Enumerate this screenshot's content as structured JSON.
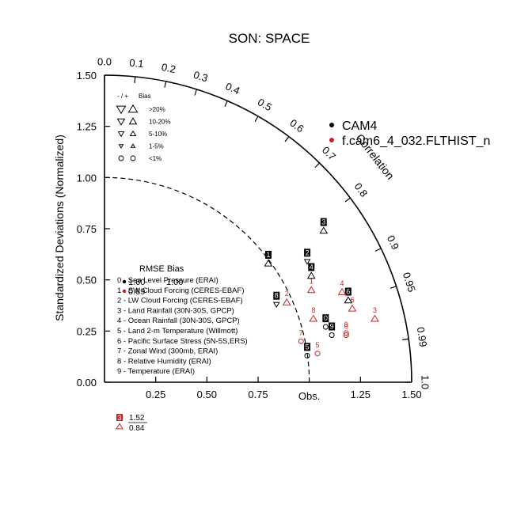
{
  "chart_data": {
    "type": "taylor",
    "title": "SON: SPACE",
    "ylabel": "Standardized Deviations (Normalized)",
    "arc_label": "Correlation",
    "obs_label": "Obs.",
    "radius_max": 1.5,
    "std_ticks_y": [
      "0.00",
      "0.25",
      "0.50",
      "0.75",
      "1.00",
      "1.25",
      "1.50"
    ],
    "std_ticks_x": [
      "0.25",
      "0.50",
      "0.75",
      "1.25",
      "1.50"
    ],
    "corr_ticks": [
      {
        "value": 0.0,
        "label": "0.0"
      },
      {
        "value": 0.1,
        "label": "0.1"
      },
      {
        "value": 0.2,
        "label": "0.2"
      },
      {
        "value": 0.3,
        "label": "0.3"
      },
      {
        "value": 0.4,
        "label": "0.4"
      },
      {
        "value": 0.5,
        "label": "0.5"
      },
      {
        "value": 0.6,
        "label": "0.6"
      },
      {
        "value": 0.7,
        "label": "0.7"
      },
      {
        "value": 0.8,
        "label": "0.8"
      },
      {
        "value": 0.9,
        "label": "0.9"
      },
      {
        "value": 0.95,
        "label": "0.95"
      },
      {
        "value": 0.99,
        "label": "0.99"
      },
      {
        "value": 1.0,
        "label": "1.0"
      }
    ],
    "reference_arc": 1.0,
    "series": [
      {
        "name": "CAM4",
        "color": "#000000",
        "points": [
          {
            "id": "0",
            "x": 1.08,
            "y": 0.27,
            "marker": "circle"
          },
          {
            "id": "1",
            "x": 0.8,
            "y": 0.58,
            "marker": "up"
          },
          {
            "id": "2",
            "x": 0.99,
            "y": 0.59,
            "marker": "down"
          },
          {
            "id": "3",
            "x": 1.07,
            "y": 0.74,
            "marker": "up"
          },
          {
            "id": "4",
            "x": 1.01,
            "y": 0.52,
            "marker": "up"
          },
          {
            "id": "5",
            "x": 0.99,
            "y": 0.13,
            "marker": "circle"
          },
          {
            "id": "6",
            "x": 1.19,
            "y": 0.4,
            "marker": "up"
          },
          {
            "id": "8",
            "x": 0.84,
            "y": 0.38,
            "marker": "down"
          },
          {
            "id": "9",
            "x": 1.11,
            "y": 0.23,
            "marker": "circle"
          }
        ]
      },
      {
        "name": "f.cam6_4_032.FLTHIST_n",
        "color": "#cc2222",
        "points": [
          {
            "id": "0",
            "x": 1.18,
            "y": 0.23,
            "marker": "circle"
          },
          {
            "id": "1",
            "x": 1.01,
            "y": 0.45,
            "marker": "up"
          },
          {
            "id": "2",
            "x": 0.89,
            "y": 0.39,
            "marker": "up"
          },
          {
            "id": "3",
            "x": 1.32,
            "y": 0.31,
            "marker": "up"
          },
          {
            "id": "4",
            "x": 1.16,
            "y": 0.44,
            "marker": "up"
          },
          {
            "id": "5",
            "x": 1.04,
            "y": 0.14,
            "marker": "circle"
          },
          {
            "id": "6",
            "x": 1.21,
            "y": 0.36,
            "marker": "up"
          },
          {
            "id": "7",
            "x": 0.96,
            "y": 0.2,
            "marker": "circle"
          },
          {
            "id": "8",
            "x": 1.02,
            "y": 0.31,
            "marker": "up"
          },
          {
            "id": "9",
            "x": 1.18,
            "y": 0.24,
            "marker": "circle"
          }
        ]
      }
    ],
    "case_legend": [
      {
        "label": "CAM4",
        "color": "#000000"
      },
      {
        "label": "f.cam6_4_032.FLTHIST_n",
        "color": "#cc2222"
      }
    ],
    "bias_legend": {
      "header_left": "- / +",
      "header_right": "Bias",
      "rows": [
        {
          "label": ">20%",
          "size": 5.5,
          "marker": "tri"
        },
        {
          "label": "10-20%",
          "size": 4.5,
          "marker": "tri"
        },
        {
          "label": "5-10%",
          "size": 3.5,
          "marker": "tri"
        },
        {
          "label": "1-5%",
          "size": 2.5,
          "marker": "tri"
        },
        {
          "label": "<1%",
          "size": 3.0,
          "marker": "circle"
        }
      ]
    },
    "variable_legend": {
      "header": "RMSE  Bias",
      "overlay_left": "1.60",
      "overlay_right": "1.00",
      "overlay_lower": "0.89",
      "items": [
        "0 - Sea Level Pressure (ERAI)",
        "1 - SW Cloud Forcing (CERES-EBAF)",
        "2 - LW Cloud Forcing (CERES-EBAF)",
        "3 - Land Rainfall (30N-30S, GPCP)",
        "4 - Ocean Rainfall (30N-30S, GPCP)",
        "5 - Land 2-m Temperature (Willmott)",
        "6 - Pacific Surface Stress (5N-5S,ERS)",
        "7 - Zonal Wind (300mb, ERAI)",
        "8 - Relative Humidity (ERAI)",
        "9 - Temperature (ERAI)"
      ]
    },
    "example_key": {
      "id": "3",
      "value_top": "1.52",
      "value_bottom": "0.84",
      "color": "#cc2222"
    }
  }
}
